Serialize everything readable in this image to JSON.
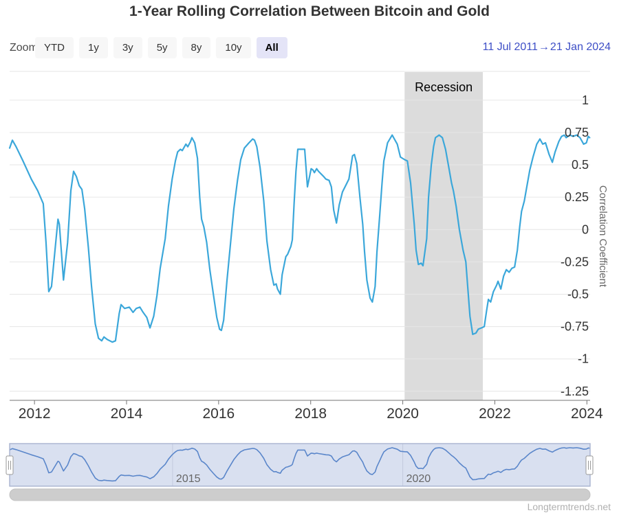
{
  "title": "1-Year Rolling Correlation Between Bitcoin and Gold",
  "range_selector": {
    "zoom_label": "Zoom",
    "buttons": [
      "YTD",
      "1y",
      "3y",
      "5y",
      "8y",
      "10y",
      "All"
    ],
    "selected": "All",
    "from_date": "11 Jul 2011",
    "separator": "→",
    "to_date": "21 Jan 2024"
  },
  "credit": "Longtermtrends.net",
  "colors": {
    "series_line": "#3ba7da",
    "navigator_line": "#5a86ca",
    "navigator_mask": "rgba(102,133,194,0.25)",
    "navigator_outline": "#a9b3cf",
    "recession_band": "#dcdcdc",
    "gridline": "#e6e6e6",
    "axis_line": "#737373",
    "axis_label": "#333333",
    "selected_button_bg": "#e4e4f7",
    "date_text": "#3d4ec6",
    "credit_text": "#b0b0b0",
    "scrollbar": "#cdcdcd"
  },
  "chart_data": {
    "type": "line",
    "title": "1-Year Rolling Correlation Between Bitcoin and Gold",
    "xlabel": "",
    "ylabel": "Correlation Coefficient",
    "grid": true,
    "legend": "none",
    "xlim": [
      2011.46,
      2024.07
    ],
    "ylim": [
      -1.32,
      1.222
    ],
    "x_ticks": [
      2012,
      2014,
      2016,
      2018,
      2020,
      2022,
      2024
    ],
    "y_ticks": [
      "1",
      "0.75",
      "0.5",
      "0.25",
      "0",
      "-0.25",
      "-0.5",
      "-0.75",
      "-1",
      "-1.25"
    ],
    "plot_band": {
      "label": "Recession",
      "from": 2020.04,
      "to": 2021.74
    },
    "series": [
      {
        "color": "#3ba7da",
        "points": [
          [
            2011.46,
            0.63
          ],
          [
            2011.52,
            0.69
          ],
          [
            2011.6,
            0.64
          ],
          [
            2011.75,
            0.53
          ],
          [
            2011.93,
            0.39
          ],
          [
            2012.07,
            0.3
          ],
          [
            2012.19,
            0.2
          ],
          [
            2012.25,
            -0.1
          ],
          [
            2012.31,
            -0.48
          ],
          [
            2012.37,
            -0.44
          ],
          [
            2012.51,
            0.08
          ],
          [
            2012.54,
            0.04
          ],
          [
            2012.63,
            -0.39
          ],
          [
            2012.72,
            -0.1
          ],
          [
            2012.79,
            0.3
          ],
          [
            2012.85,
            0.45
          ],
          [
            2012.91,
            0.41
          ],
          [
            2012.97,
            0.34
          ],
          [
            2013.03,
            0.31
          ],
          [
            2013.09,
            0.16
          ],
          [
            2013.17,
            -0.14
          ],
          [
            2013.24,
            -0.44
          ],
          [
            2013.32,
            -0.73
          ],
          [
            2013.39,
            -0.84
          ],
          [
            2013.46,
            -0.86
          ],
          [
            2013.51,
            -0.83
          ],
          [
            2013.58,
            -0.85
          ],
          [
            2013.69,
            -0.87
          ],
          [
            2013.76,
            -0.86
          ],
          [
            2013.84,
            -0.65
          ],
          [
            2013.88,
            -0.58
          ],
          [
            2013.96,
            -0.61
          ],
          [
            2014.06,
            -0.6
          ],
          [
            2014.14,
            -0.64
          ],
          [
            2014.21,
            -0.61
          ],
          [
            2014.29,
            -0.6
          ],
          [
            2014.36,
            -0.64
          ],
          [
            2014.44,
            -0.68
          ],
          [
            2014.51,
            -0.76
          ],
          [
            2014.59,
            -0.67
          ],
          [
            2014.66,
            -0.51
          ],
          [
            2014.73,
            -0.3
          ],
          [
            2014.84,
            -0.07
          ],
          [
            2014.91,
            0.18
          ],
          [
            2014.99,
            0.39
          ],
          [
            2015.06,
            0.53
          ],
          [
            2015.11,
            0.6
          ],
          [
            2015.17,
            0.62
          ],
          [
            2015.21,
            0.61
          ],
          [
            2015.29,
            0.66
          ],
          [
            2015.33,
            0.64
          ],
          [
            2015.39,
            0.68
          ],
          [
            2015.42,
            0.71
          ],
          [
            2015.48,
            0.67
          ],
          [
            2015.54,
            0.55
          ],
          [
            2015.59,
            0.25
          ],
          [
            2015.63,
            0.08
          ],
          [
            2015.68,
            0.02
          ],
          [
            2015.74,
            -0.1
          ],
          [
            2015.81,
            -0.31
          ],
          [
            2015.89,
            -0.51
          ],
          [
            2015.96,
            -0.68
          ],
          [
            2016.02,
            -0.77
          ],
          [
            2016.06,
            -0.78
          ],
          [
            2016.11,
            -0.7
          ],
          [
            2016.18,
            -0.4
          ],
          [
            2016.26,
            -0.1
          ],
          [
            2016.33,
            0.16
          ],
          [
            2016.41,
            0.38
          ],
          [
            2016.48,
            0.54
          ],
          [
            2016.56,
            0.63
          ],
          [
            2016.66,
            0.67
          ],
          [
            2016.74,
            0.7
          ],
          [
            2016.78,
            0.69
          ],
          [
            2016.83,
            0.64
          ],
          [
            2016.9,
            0.48
          ],
          [
            2016.98,
            0.22
          ],
          [
            2017.05,
            -0.09
          ],
          [
            2017.13,
            -0.31
          ],
          [
            2017.2,
            -0.43
          ],
          [
            2017.25,
            -0.42
          ],
          [
            2017.28,
            -0.46
          ],
          [
            2017.34,
            -0.5
          ],
          [
            2017.38,
            -0.35
          ],
          [
            2017.46,
            -0.21
          ],
          [
            2017.5,
            -0.19
          ],
          [
            2017.57,
            -0.13
          ],
          [
            2017.6,
            -0.08
          ],
          [
            2017.64,
            0.2
          ],
          [
            2017.68,
            0.45
          ],
          [
            2017.72,
            0.62
          ],
          [
            2017.87,
            0.62
          ],
          [
            2017.93,
            0.33
          ],
          [
            2018.01,
            0.47
          ],
          [
            2018.05,
            0.46
          ],
          [
            2018.08,
            0.44
          ],
          [
            2018.13,
            0.47
          ],
          [
            2018.17,
            0.45
          ],
          [
            2018.28,
            0.41
          ],
          [
            2018.33,
            0.39
          ],
          [
            2018.4,
            0.38
          ],
          [
            2018.45,
            0.33
          ],
          [
            2018.5,
            0.15
          ],
          [
            2018.56,
            0.05
          ],
          [
            2018.62,
            0.19
          ],
          [
            2018.69,
            0.29
          ],
          [
            2018.76,
            0.34
          ],
          [
            2018.83,
            0.39
          ],
          [
            2018.91,
            0.57
          ],
          [
            2018.95,
            0.58
          ],
          [
            2019.0,
            0.51
          ],
          [
            2019.07,
            0.25
          ],
          [
            2019.13,
            0.04
          ],
          [
            2019.17,
            -0.17
          ],
          [
            2019.22,
            -0.39
          ],
          [
            2019.29,
            -0.53
          ],
          [
            2019.34,
            -0.56
          ],
          [
            2019.4,
            -0.44
          ],
          [
            2019.44,
            -0.17
          ],
          [
            2019.5,
            0.11
          ],
          [
            2019.55,
            0.36
          ],
          [
            2019.59,
            0.53
          ],
          [
            2019.67,
            0.67
          ],
          [
            2019.77,
            0.73
          ],
          [
            2019.88,
            0.66
          ],
          [
            2019.95,
            0.56
          ],
          [
            2020.04,
            0.54
          ],
          [
            2020.1,
            0.53
          ],
          [
            2020.17,
            0.36
          ],
          [
            2020.25,
            0.04
          ],
          [
            2020.29,
            -0.16
          ],
          [
            2020.34,
            -0.27
          ],
          [
            2020.4,
            -0.26
          ],
          [
            2020.44,
            -0.28
          ],
          [
            2020.52,
            -0.07
          ],
          [
            2020.56,
            0.25
          ],
          [
            2020.62,
            0.5
          ],
          [
            2020.67,
            0.64
          ],
          [
            2020.71,
            0.71
          ],
          [
            2020.79,
            0.73
          ],
          [
            2020.86,
            0.71
          ],
          [
            2020.93,
            0.62
          ],
          [
            2021.01,
            0.46
          ],
          [
            2021.06,
            0.36
          ],
          [
            2021.1,
            0.3
          ],
          [
            2021.16,
            0.18
          ],
          [
            2021.23,
            0.0
          ],
          [
            2021.31,
            -0.16
          ],
          [
            2021.37,
            -0.25
          ],
          [
            2021.41,
            -0.44
          ],
          [
            2021.46,
            -0.67
          ],
          [
            2021.52,
            -0.81
          ],
          [
            2021.59,
            -0.8
          ],
          [
            2021.64,
            -0.77
          ],
          [
            2021.71,
            -0.76
          ],
          [
            2021.77,
            -0.75
          ],
          [
            2021.82,
            -0.63
          ],
          [
            2021.86,
            -0.54
          ],
          [
            2021.91,
            -0.56
          ],
          [
            2021.97,
            -0.48
          ],
          [
            2022.04,
            -0.43
          ],
          [
            2022.07,
            -0.4
          ],
          [
            2022.13,
            -0.46
          ],
          [
            2022.19,
            -0.36
          ],
          [
            2022.25,
            -0.31
          ],
          [
            2022.31,
            -0.33
          ],
          [
            2022.37,
            -0.3
          ],
          [
            2022.43,
            -0.29
          ],
          [
            2022.49,
            -0.16
          ],
          [
            2022.54,
            0.02
          ],
          [
            2022.58,
            0.14
          ],
          [
            2022.64,
            0.22
          ],
          [
            2022.69,
            0.32
          ],
          [
            2022.76,
            0.46
          ],
          [
            2022.83,
            0.56
          ],
          [
            2022.91,
            0.66
          ],
          [
            2022.98,
            0.7
          ],
          [
            2023.04,
            0.66
          ],
          [
            2023.1,
            0.67
          ],
          [
            2023.18,
            0.58
          ],
          [
            2023.25,
            0.52
          ],
          [
            2023.31,
            0.6
          ],
          [
            2023.39,
            0.68
          ],
          [
            2023.45,
            0.72
          ],
          [
            2023.51,
            0.73
          ],
          [
            2023.55,
            0.71
          ],
          [
            2023.63,
            0.73
          ],
          [
            2023.7,
            0.72
          ],
          [
            2023.78,
            0.73
          ],
          [
            2023.85,
            0.71
          ],
          [
            2023.93,
            0.66
          ],
          [
            2023.99,
            0.67
          ],
          [
            2024.03,
            0.72
          ],
          [
            2024.06,
            0.71
          ]
        ]
      }
    ],
    "navigator": {
      "tick_years": [
        2015,
        2020
      ],
      "tick_labels": [
        "2015",
        "2020"
      ],
      "value_range": [
        -1.12,
        0.93
      ]
    }
  }
}
